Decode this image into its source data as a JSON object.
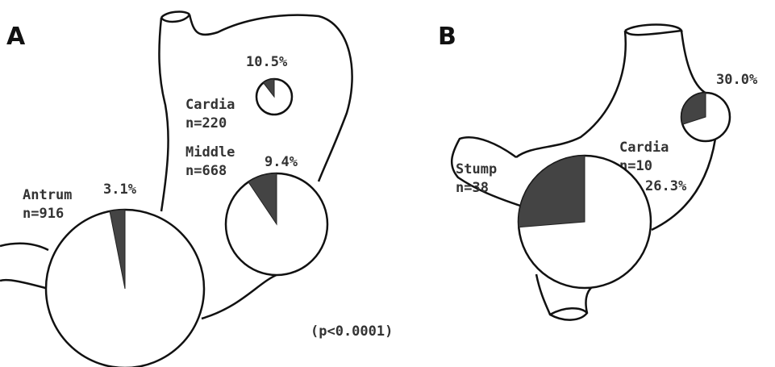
{
  "panels": [
    {
      "letter": "A",
      "regions": [
        {
          "name": "Cardia",
          "n_label": "n=220",
          "percent": 10.5,
          "percent_label": "10.5%"
        },
        {
          "name": "Middle",
          "n_label": "n=668",
          "percent": 9.4,
          "percent_label": "9.4%"
        },
        {
          "name": "Antrum",
          "n_label": "n=916",
          "percent": 3.1,
          "percent_label": "3.1%"
        }
      ],
      "p_value": "(p<0.0001)"
    },
    {
      "letter": "B",
      "regions": [
        {
          "name": "Cardia",
          "n_label": "n=10",
          "percent": 30.0,
          "percent_label": "30.0%"
        },
        {
          "name": "Stump",
          "n_label": "n=38",
          "percent": 26.3,
          "percent_label": "26.3%"
        }
      ]
    }
  ]
}
